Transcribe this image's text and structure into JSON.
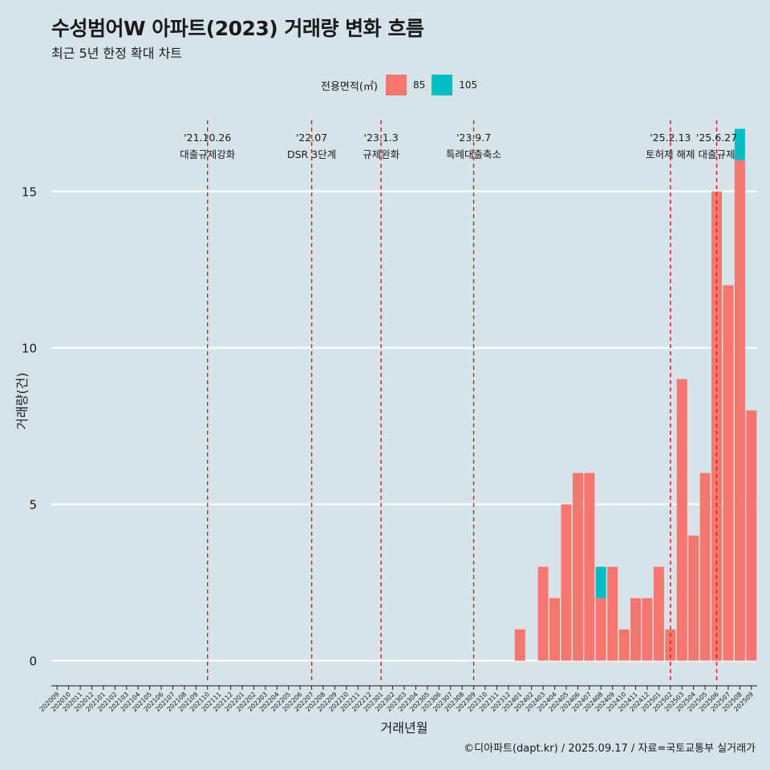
{
  "header": {
    "title": "수성범어W 아파트(2023) 거래량 변화 흐름",
    "subtitle": "최근 5년 한정 확대 차트"
  },
  "legend": {
    "title": "전용면적(㎡)",
    "items": [
      {
        "label": "85",
        "color": "#f8766d"
      },
      {
        "label": "105",
        "color": "#00bfc4"
      }
    ]
  },
  "footer": "©디아파트(dapt.kr) / 2025.09.17 / 자료=국토교통부 실거래가",
  "chart_data": {
    "type": "bar",
    "stacked": true,
    "xlabel": "거래년월",
    "ylabel": "거래량(건)",
    "ylim": [
      -0.7,
      17.4
    ],
    "yticks": [
      0,
      5,
      10,
      15
    ],
    "grid": "horizontal",
    "legend_position": "top",
    "categories": [
      "202009",
      "202010",
      "202011",
      "202012",
      "202101",
      "202102",
      "202103",
      "202104",
      "202105",
      "202106",
      "202107",
      "202108",
      "202109",
      "202110",
      "202111",
      "202112",
      "202201",
      "202202",
      "202203",
      "202204",
      "202205",
      "202206",
      "202207",
      "202208",
      "202209",
      "202210",
      "202211",
      "202212",
      "202301",
      "202302",
      "202303",
      "202304",
      "202305",
      "202306",
      "202307",
      "202308",
      "202309",
      "202310",
      "202311",
      "202312",
      "202401",
      "202402",
      "202403",
      "202404",
      "202405",
      "202406",
      "202407",
      "202408",
      "202409",
      "202410",
      "202411",
      "202412",
      "202501",
      "202502",
      "202503",
      "202504",
      "202505",
      "202506",
      "202507",
      "202508",
      "202509"
    ],
    "series": [
      {
        "name": "85",
        "color": "#f8766d",
        "values": [
          0,
          0,
          0,
          0,
          0,
          0,
          0,
          0,
          0,
          0,
          0,
          0,
          0,
          0,
          0,
          0,
          0,
          0,
          0,
          0,
          0,
          0,
          0,
          0,
          0,
          0,
          0,
          0,
          0,
          0,
          0,
          0,
          0,
          0,
          0,
          0,
          0,
          0,
          0,
          0,
          1,
          0,
          3,
          2,
          5,
          6,
          6,
          2,
          3,
          1,
          2,
          2,
          3,
          1,
          9,
          4,
          6,
          15,
          12,
          16,
          8
        ]
      },
      {
        "name": "105",
        "color": "#00bfc4",
        "values": [
          0,
          0,
          0,
          0,
          0,
          0,
          0,
          0,
          0,
          0,
          0,
          0,
          0,
          0,
          0,
          0,
          0,
          0,
          0,
          0,
          0,
          0,
          0,
          0,
          0,
          0,
          0,
          0,
          0,
          0,
          0,
          0,
          0,
          0,
          0,
          0,
          0,
          0,
          0,
          0,
          0,
          0,
          0,
          0,
          0,
          0,
          0,
          1,
          0,
          0,
          0,
          0,
          0,
          0,
          0,
          0,
          0,
          0,
          0,
          1,
          0
        ]
      }
    ],
    "events": [
      {
        "date": "'21.10.26",
        "label": "대출규제강화",
        "index": 13.5
      },
      {
        "date": "'22.07",
        "label": "DSR 3단계",
        "index": 22.5
      },
      {
        "date": "'23.1.3",
        "label": "규제완화",
        "index": 28.5
      },
      {
        "date": "'23.9.7",
        "label": "특례대출축소",
        "index": 36.5
      },
      {
        "date": "'25.2.13",
        "label": "토허제 해제",
        "index": 53.5
      },
      {
        "date": "'25.6.27",
        "label": "대출규제",
        "index": 57.5
      }
    ]
  }
}
